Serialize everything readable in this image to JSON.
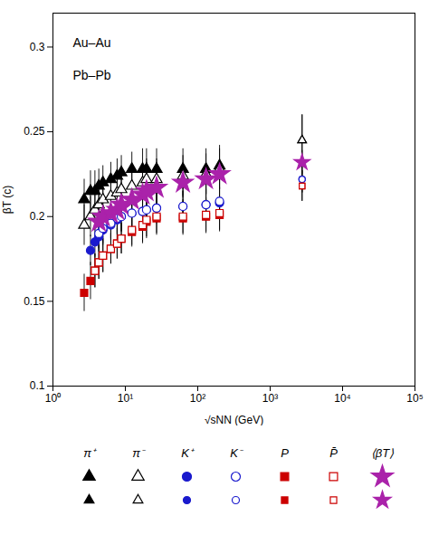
{
  "chart_data": {
    "type": "scatter",
    "xlabel": "√sNN (GeV)",
    "ylabel": "βT (c)",
    "log": "x",
    "xlim": [
      1,
      100000
    ],
    "ylim": [
      0.1,
      0.32
    ],
    "xticks": [
      {
        "value": 1,
        "label": "10⁰"
      },
      {
        "value": 10,
        "label": "10¹"
      },
      {
        "value": 100,
        "label": "10²"
      },
      {
        "value": 1000,
        "label": "10³"
      },
      {
        "value": 10000,
        "label": "10⁴"
      },
      {
        "value": 100000,
        "label": "10⁵"
      }
    ],
    "yticks": [
      0.1,
      0.15,
      0.2,
      0.25,
      0.3
    ],
    "grid": false,
    "annotations": [
      "Au–Au",
      "Pb–Pb"
    ],
    "series": [
      {
        "name": "π⁺",
        "system": "Au–Au",
        "color": "#000000",
        "marker": "triangle",
        "x": [
          2.7,
          3.3,
          3.8,
          4.3,
          4.9,
          6.3,
          7.7,
          8.8,
          12.3,
          17.3,
          19.6,
          27,
          62.4,
          130,
          200
        ],
        "values": [
          0.21,
          0.215,
          0.215,
          0.218,
          0.22,
          0.222,
          0.224,
          0.226,
          0.228,
          0.228,
          0.228,
          0.228,
          0.228,
          0.228,
          0.23
        ],
        "yerr": [
          0.012,
          0.012,
          0.012,
          0.01,
          0.01,
          0.01,
          0.01,
          0.01,
          0.01,
          0.012,
          0.012,
          0.012,
          0.012,
          0.012,
          0.012
        ]
      },
      {
        "name": "π⁻",
        "system": "Au–Au",
        "color": "#000000",
        "marker": "triangle-open",
        "x": [
          2.7,
          3.3,
          3.8,
          4.3,
          4.9,
          6.3,
          7.7,
          8.8,
          12.3,
          17.3,
          19.6,
          27,
          62.4,
          130,
          200
        ],
        "values": [
          0.195,
          0.2,
          0.204,
          0.207,
          0.21,
          0.212,
          0.214,
          0.216,
          0.218,
          0.22,
          0.222,
          0.222,
          0.224,
          0.225,
          0.228
        ],
        "yerr": [
          0.012,
          0.012,
          0.012,
          0.01,
          0.01,
          0.01,
          0.01,
          0.01,
          0.01,
          0.012,
          0.012,
          0.012,
          0.012,
          0.012,
          0.012
        ]
      },
      {
        "name": "K⁺",
        "system": "Au–Au",
        "color": "#1a1acd",
        "marker": "circle",
        "x": [
          3.3,
          3.8,
          4.3,
          4.9,
          6.3,
          7.7,
          8.8,
          12.3,
          17.3,
          19.6,
          27,
          62.4,
          130,
          200
        ],
        "values": [
          0.18,
          0.185,
          0.188,
          0.192,
          0.195,
          0.198,
          0.2,
          0.202,
          0.203,
          0.204,
          0.205,
          0.206,
          0.207,
          0.208
        ],
        "yerr": [
          0.009,
          0.009,
          0.009,
          0.009,
          0.009,
          0.009,
          0.009,
          0.009,
          0.009,
          0.009,
          0.009,
          0.009,
          0.009,
          0.009
        ]
      },
      {
        "name": "K⁻",
        "system": "Au–Au",
        "color": "#1a1acd",
        "marker": "circle-open",
        "x": [
          4.3,
          4.9,
          6.3,
          7.7,
          8.8,
          12.3,
          17.3,
          19.6,
          27,
          62.4,
          130,
          200
        ],
        "values": [
          0.19,
          0.193,
          0.196,
          0.199,
          0.2,
          0.202,
          0.203,
          0.204,
          0.205,
          0.206,
          0.207,
          0.209
        ],
        "yerr": [
          0.009,
          0.009,
          0.009,
          0.009,
          0.009,
          0.009,
          0.009,
          0.009,
          0.009,
          0.009,
          0.009,
          0.009
        ]
      },
      {
        "name": "P",
        "system": "Au–Au",
        "color": "#cc0000",
        "marker": "square",
        "x": [
          2.7,
          3.3,
          3.8,
          4.3,
          4.9,
          6.3,
          7.7,
          8.8,
          12.3,
          17.3,
          19.6,
          27,
          62.4,
          130,
          200
        ],
        "values": [
          0.155,
          0.162,
          0.168,
          0.173,
          0.177,
          0.181,
          0.184,
          0.187,
          0.191,
          0.194,
          0.197,
          0.199,
          0.199,
          0.2,
          0.201
        ],
        "yerr": [
          0.011,
          0.011,
          0.01,
          0.01,
          0.01,
          0.009,
          0.009,
          0.009,
          0.009,
          0.01,
          0.01,
          0.01,
          0.01,
          0.01,
          0.01
        ]
      },
      {
        "name": "P̄",
        "system": "Au–Au",
        "color": "#cc0000",
        "marker": "square-open",
        "x": [
          3.8,
          4.3,
          4.9,
          6.3,
          7.7,
          8.8,
          12.3,
          17.3,
          19.6,
          27,
          62.4,
          130,
          200
        ],
        "values": [
          0.168,
          0.173,
          0.177,
          0.181,
          0.184,
          0.187,
          0.192,
          0.195,
          0.198,
          0.2,
          0.2,
          0.201,
          0.202
        ],
        "yerr": [
          0.01,
          0.01,
          0.01,
          0.009,
          0.009,
          0.009,
          0.009,
          0.01,
          0.01,
          0.01,
          0.01,
          0.01,
          0.01
        ]
      },
      {
        "name": "⟨βT⟩",
        "system": "Au–Au",
        "color": "#aa22aa",
        "marker": "star",
        "x": [
          4.3,
          4.9,
          6.3,
          7.7,
          8.8,
          12.3,
          17.3,
          19.6,
          27,
          62.4,
          130,
          200
        ],
        "values": [
          0.197,
          0.2,
          0.202,
          0.204,
          0.207,
          0.21,
          0.213,
          0.215,
          0.217,
          0.22,
          0.222,
          0.225
        ],
        "yerr": [
          0.008,
          0.008,
          0.008,
          0.008,
          0.008,
          0.008,
          0.009,
          0.009,
          0.009,
          0.009,
          0.009,
          0.009
        ]
      },
      {
        "name": "π⁺",
        "system": "Pb–Pb",
        "color": "#000000",
        "marker": "triangle",
        "x": [
          2760
        ],
        "values": [
          0.245
        ],
        "yerr": [
          0.015
        ]
      },
      {
        "name": "π⁻",
        "system": "Pb–Pb",
        "color": "#000000",
        "marker": "triangle-open",
        "x": [
          2760
        ],
        "values": [
          0.245
        ],
        "yerr": [
          0.015
        ]
      },
      {
        "name": "K⁺",
        "system": "Pb–Pb",
        "color": "#1a1acd",
        "marker": "circle",
        "x": [
          2760
        ],
        "values": [
          0.222
        ],
        "yerr": [
          0.008
        ]
      },
      {
        "name": "K⁻",
        "system": "Pb–Pb",
        "color": "#1a1acd",
        "marker": "circle-open",
        "x": [
          2760
        ],
        "values": [
          0.222
        ],
        "yerr": [
          0.008
        ]
      },
      {
        "name": "P",
        "system": "Pb–Pb",
        "color": "#cc0000",
        "marker": "square",
        "x": [
          2760
        ],
        "values": [
          0.218
        ],
        "yerr": [
          0.009
        ]
      },
      {
        "name": "P̄",
        "system": "Pb–Pb",
        "color": "#cc0000",
        "marker": "square-open",
        "x": [
          2760
        ],
        "values": [
          0.218
        ],
        "yerr": [
          0.009
        ]
      },
      {
        "name": "⟨βT⟩",
        "system": "Pb–Pb",
        "color": "#aa22aa",
        "marker": "star",
        "x": [
          2760
        ],
        "values": [
          0.232
        ],
        "yerr": [
          0.007
        ]
      }
    ]
  }
}
